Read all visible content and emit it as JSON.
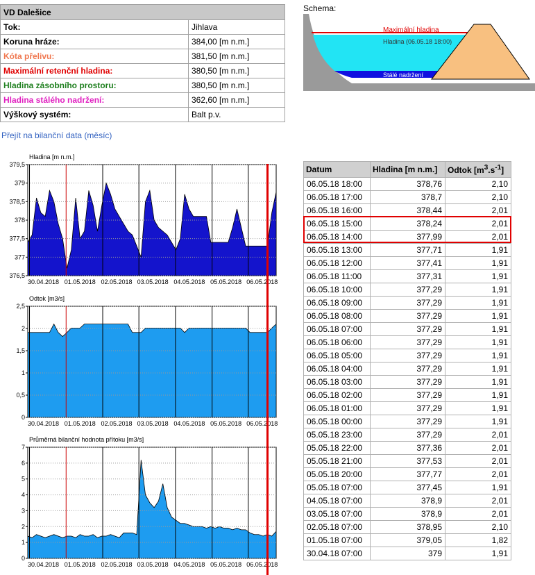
{
  "info": {
    "title": "VD Dalešice",
    "rows": [
      [
        "Tok:",
        "Jihlava"
      ],
      [
        "Koruna hráze:",
        "384,00 [m n.m.]"
      ],
      [
        "Kóta přelivu:",
        "381,50 [m n.m.]"
      ],
      [
        "Maximální retenční hladina:",
        "380,50 [m n.m.]"
      ],
      [
        "Hladina zásobního prostoru:",
        "380,50 [m n.m.]"
      ],
      [
        "Hladina stálého nadržení:",
        "362,60 [m n.m.]"
      ],
      [
        "Výškový systém:",
        "Balt p.v."
      ]
    ],
    "label_colors": [
      "#000000",
      "#000000",
      "#f07850",
      "#e00000",
      "#208020",
      "#e020c0",
      "#000000"
    ]
  },
  "link": "Přejít na bilanční data (měsíc)",
  "schema": {
    "title": "Schema:",
    "labels": [
      "Maximální hladina",
      "Hladina  (06.05.18 18:00)",
      "Stálé nadržení"
    ]
  },
  "table": {
    "header": [
      [
        "Datum"
      ],
      [
        "Hladina [m n.m.]"
      ],
      [
        "Odtok [m",
        "3",
        ".s",
        "-1",
        "]"
      ]
    ],
    "rows": [
      [
        "06.05.18 18:00",
        "378,76",
        "2,10"
      ],
      [
        "06.05.18 17:00",
        "378,7",
        "2,10"
      ],
      [
        "06.05.18 16:00",
        "378,44",
        "2,01"
      ],
      [
        "06.05.18 15:00",
        "378,24",
        "2,01"
      ],
      [
        "06.05.18 14:00",
        "377,99",
        "2,01"
      ],
      [
        "06.05.18 13:00",
        "377,71",
        "1,91"
      ],
      [
        "06.05.18 12:00",
        "377,41",
        "1,91"
      ],
      [
        "06.05.18 11:00",
        "377,31",
        "1,91"
      ],
      [
        "06.05.18 10:00",
        "377,29",
        "1,91"
      ],
      [
        "06.05.18 09:00",
        "377,29",
        "1,91"
      ],
      [
        "06.05.18 08:00",
        "377,29",
        "1,91"
      ],
      [
        "06.05.18 07:00",
        "377,29",
        "1,91"
      ],
      [
        "06.05.18 06:00",
        "377,29",
        "1,91"
      ],
      [
        "06.05.18 05:00",
        "377,29",
        "1,91"
      ],
      [
        "06.05.18 04:00",
        "377,29",
        "1,91"
      ],
      [
        "06.05.18 03:00",
        "377,29",
        "1,91"
      ],
      [
        "06.05.18 02:00",
        "377,29",
        "1,91"
      ],
      [
        "06.05.18 01:00",
        "377,29",
        "1,91"
      ],
      [
        "06.05.18 00:00",
        "377,29",
        "1,91"
      ],
      [
        "05.05.18 23:00",
        "377,29",
        "2,01"
      ],
      [
        "05.05.18 22:00",
        "377,36",
        "2,01"
      ],
      [
        "05.05.18 21:00",
        "377,53",
        "2,01"
      ],
      [
        "05.05.18 20:00",
        "377,77",
        "2,01"
      ],
      [
        "05.05.18 07:00",
        "377,45",
        "1,91"
      ],
      [
        "04.05.18 07:00",
        "378,9",
        "2,01"
      ],
      [
        "03.05.18 07:00",
        "378,9",
        "2,01"
      ],
      [
        "02.05.18 07:00",
        "378,95",
        "2,10"
      ],
      [
        "01.05.18 07:00",
        "379,05",
        "1,82"
      ],
      [
        "30.04.18 07:00",
        "379",
        "1,91"
      ]
    ]
  },
  "chart_data": [
    {
      "type": "area",
      "title": "Hladina [m n.m.]",
      "color": "#1414cc",
      "values": [
        377.4,
        377.6,
        378.6,
        378.2,
        378.1,
        378.8,
        378.5,
        377.9,
        377.5,
        376.7,
        377.2,
        378.6,
        377.5,
        377.7,
        378.8,
        378.4,
        377.7,
        378.4,
        379.0,
        378.7,
        378.3,
        378.1,
        377.9,
        377.7,
        377.6,
        377.3,
        377.0,
        378.5,
        378.8,
        378.0,
        377.8,
        377.7,
        377.6,
        377.4,
        377.2,
        377.5,
        378.7,
        378.3,
        378.1,
        378.1,
        378.1,
        378.1,
        377.4,
        377.4,
        377.4,
        377.4,
        377.4,
        377.8,
        378.3,
        377.8,
        377.3,
        377.3,
        377.3,
        377.3,
        377.3,
        377.3,
        378.2,
        378.76
      ],
      "xlim": [
        0,
        57
      ],
      "xticks": [
        {
          "value": 0.4,
          "label": "30.04.2018"
        },
        {
          "value": 8.8,
          "label": "01.05.2018"
        },
        {
          "value": 17.2,
          "label": "02.05.2018"
        },
        {
          "value": 25.5,
          "label": "03.05.2018"
        },
        {
          "value": 33.9,
          "label": "04.05.2018"
        },
        {
          "value": 42.3,
          "label": "05.05.2018"
        },
        {
          "value": 50.6,
          "label": "06.05.2018"
        }
      ],
      "xtick_colors": [
        "#000000",
        "#cc0000",
        "#000000",
        "#000000",
        "#000000",
        "#000000",
        "#000000"
      ],
      "ylim": [
        376.5,
        379.5
      ],
      "yticks": [
        {
          "value": 376.5,
          "label": "376,5"
        },
        377,
        {
          "value": 377.5,
          "label": "377,5"
        },
        378,
        {
          "value": 378.5,
          "label": "378,5"
        },
        379,
        {
          "value": 379.5,
          "label": "379,5"
        }
      ],
      "grid": true
    },
    {
      "type": "area",
      "title": "Odtok [m3/s]",
      "color": "#1e9cf0",
      "values": [
        1.91,
        1.91,
        1.91,
        1.91,
        1.91,
        1.91,
        2.1,
        1.91,
        1.82,
        1.91,
        2.01,
        2.01,
        2.01,
        2.1,
        2.1,
        2.1,
        2.1,
        2.1,
        2.1,
        2.1,
        2.1,
        2.1,
        2.1,
        2.1,
        1.91,
        1.91,
        1.91,
        2.01,
        2.01,
        2.01,
        2.01,
        2.01,
        2.01,
        2.01,
        2.01,
        2.01,
        1.91,
        2.01,
        2.01,
        2.01,
        2.01,
        2.01,
        2.01,
        2.01,
        2.01,
        2.01,
        2.01,
        2.01,
        2.01,
        2.01,
        2.01,
        1.91,
        1.91,
        1.91,
        1.91,
        1.91,
        2.01,
        2.1
      ],
      "xlim": [
        0,
        57
      ],
      "xticks": [
        {
          "value": 0.4,
          "label": "30.04.2018"
        },
        {
          "value": 8.8,
          "label": "01.05.2018"
        },
        {
          "value": 17.2,
          "label": "02.05.2018"
        },
        {
          "value": 25.5,
          "label": "03.05.2018"
        },
        {
          "value": 33.9,
          "label": "04.05.2018"
        },
        {
          "value": 42.3,
          "label": "05.05.2018"
        },
        {
          "value": 50.6,
          "label": "06.05.2018"
        }
      ],
      "xtick_colors": [
        "#000000",
        "#cc0000",
        "#000000",
        "#000000",
        "#000000",
        "#000000",
        "#000000"
      ],
      "ylim": [
        0,
        2.5
      ],
      "yticks": [
        0,
        {
          "value": 0.5,
          "label": "0,5"
        },
        1,
        {
          "value": 1.5,
          "label": "1,5"
        },
        2,
        {
          "value": 2.5,
          "label": "2,5"
        }
      ],
      "grid": true
    },
    {
      "type": "area",
      "title": "Průměrná bilanční hodnota přítoku [m3/s]",
      "color": "#1e9cf0",
      "values": [
        1.4,
        1.3,
        1.5,
        1.4,
        1.3,
        1.4,
        1.5,
        1.4,
        1.3,
        1.4,
        1.4,
        1.3,
        1.5,
        1.4,
        1.4,
        1.5,
        1.3,
        1.4,
        1.4,
        1.5,
        1.4,
        1.3,
        1.6,
        1.6,
        1.6,
        1.5,
        6.2,
        4.0,
        3.5,
        3.2,
        3.6,
        4.7,
        3.2,
        2.6,
        2.4,
        2.2,
        2.2,
        2.1,
        2.0,
        2.0,
        2.0,
        1.9,
        2.0,
        1.9,
        2.0,
        1.9,
        1.9,
        1.8,
        1.9,
        1.8,
        1.8,
        1.6,
        1.5,
        1.5,
        1.4,
        1.5,
        1.4,
        1.7
      ],
      "xlim": [
        0,
        57
      ],
      "xticks": [
        {
          "value": 0.4,
          "label": "30.04.2018"
        },
        {
          "value": 8.8,
          "label": "01.05.2018"
        },
        {
          "value": 17.2,
          "label": "02.05.2018"
        },
        {
          "value": 25.5,
          "label": "03.05.2018"
        },
        {
          "value": 33.9,
          "label": "04.05.2018"
        },
        {
          "value": 42.3,
          "label": "05.05.2018"
        },
        {
          "value": 50.6,
          "label": "06.05.2018"
        }
      ],
      "xtick_colors": [
        "#000000",
        "#cc0000",
        "#000000",
        "#000000",
        "#000000",
        "#000000",
        "#000000"
      ],
      "ylim": [
        0,
        7
      ],
      "yticks": [
        0,
        1,
        2,
        3,
        4,
        5,
        6,
        7
      ],
      "grid": true
    }
  ]
}
